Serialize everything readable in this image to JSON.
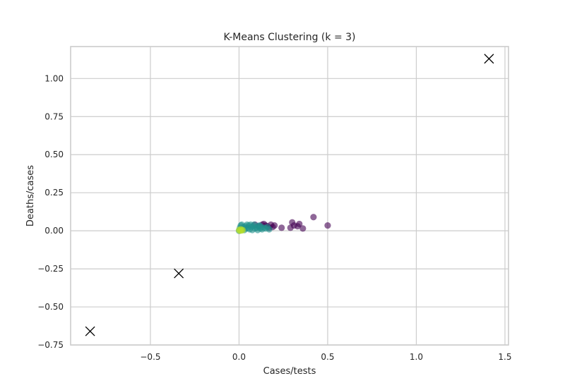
{
  "chart_data": {
    "type": "scatter",
    "title": "K-Means Clustering (k = 3)",
    "xlabel": "Cases/tests",
    "ylabel": "Deaths/cases",
    "xlim": [
      -0.95,
      1.52
    ],
    "ylim": [
      -0.75,
      1.21
    ],
    "x_ticks": [
      "−0.5",
      "0.0",
      "0.5",
      "1.0",
      "1.5"
    ],
    "x_tick_values": [
      -0.5,
      0.0,
      0.5,
      1.0,
      1.5
    ],
    "y_ticks": [
      "−0.75",
      "−0.50",
      "−0.25",
      "0.00",
      "0.25",
      "0.50",
      "0.75",
      "1.00"
    ],
    "y_tick_values": [
      -0.75,
      -0.5,
      -0.25,
      0.0,
      0.25,
      0.5,
      0.75,
      1.0
    ],
    "grid": true,
    "colors": {
      "cluster_0": "#440154",
      "cluster_1": "#21918c",
      "cluster_2": "#b5de2b",
      "centroid": "#000000"
    },
    "series": [
      {
        "cluster": 0,
        "color": "#440154",
        "points": [
          [
            0.09,
            0.04
          ],
          [
            0.11,
            0.03
          ],
          [
            0.13,
            0.04
          ],
          [
            0.15,
            0.035
          ],
          [
            0.16,
            0.03
          ],
          [
            0.18,
            0.04
          ],
          [
            0.19,
            0.025
          ],
          [
            0.2,
            0.035
          ],
          [
            0.24,
            0.02
          ],
          [
            0.29,
            0.02
          ],
          [
            0.3,
            0.055
          ],
          [
            0.31,
            0.035
          ],
          [
            0.33,
            0.03
          ],
          [
            0.34,
            0.045
          ],
          [
            0.36,
            0.015
          ],
          [
            0.42,
            0.09
          ],
          [
            0.5,
            0.035
          ],
          [
            0.14,
            0.045
          ],
          [
            0.17,
            0.02
          ]
        ]
      },
      {
        "cluster": 1,
        "color": "#21918c",
        "points": [
          [
            0.0,
            0.0
          ],
          [
            0.005,
            0.02
          ],
          [
            0.01,
            0.035
          ],
          [
            0.02,
            0.01
          ],
          [
            0.025,
            0.025
          ],
          [
            0.03,
            0.005
          ],
          [
            0.035,
            0.03
          ],
          [
            0.04,
            0.015
          ],
          [
            0.05,
            0.02
          ],
          [
            0.055,
            0.035
          ],
          [
            0.06,
            0.01
          ],
          [
            0.07,
            0.025
          ],
          [
            0.075,
            0.005
          ],
          [
            0.08,
            0.03
          ],
          [
            0.09,
            0.015
          ],
          [
            0.1,
            0.02
          ],
          [
            0.105,
            0.005
          ],
          [
            0.11,
            0.03
          ],
          [
            0.12,
            0.015
          ],
          [
            0.125,
            0.025
          ],
          [
            0.13,
            0.01
          ],
          [
            0.14,
            0.02
          ],
          [
            0.15,
            0.015
          ],
          [
            0.16,
            0.025
          ],
          [
            0.17,
            0.01
          ],
          [
            0.045,
            0.04
          ],
          [
            0.065,
            0.04
          ],
          [
            0.015,
            0.04
          ],
          [
            0.085,
            0.04
          ],
          [
            0.115,
            0.035
          ]
        ]
      },
      {
        "cluster": 2,
        "color": "#b5de2b",
        "points": [
          [
            0.0,
            0.005
          ],
          [
            0.005,
            0.0
          ],
          [
            0.01,
            0.01
          ],
          [
            0.015,
            0.002
          ],
          [
            0.02,
            0.005
          ]
        ]
      }
    ],
    "centroids": [
      {
        "x": 1.41,
        "y": 1.13
      },
      {
        "x": -0.34,
        "y": -0.28
      },
      {
        "x": -0.84,
        "y": -0.66
      }
    ]
  }
}
